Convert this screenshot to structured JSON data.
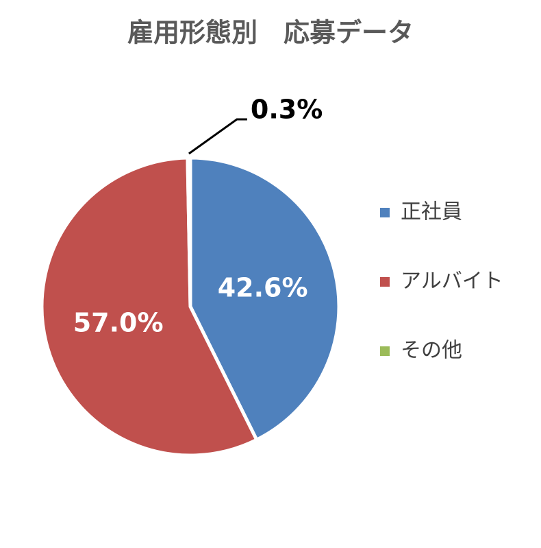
{
  "chart_data": {
    "type": "pie",
    "title": "雇用形態別　応募データ",
    "categories": [
      "正社員",
      "アルバイト",
      "その他"
    ],
    "values": [
      42.6,
      57.0,
      0.3
    ],
    "value_labels": [
      "42.6%",
      "57.0%",
      "0.3%"
    ],
    "colors": [
      "#4f81bd",
      "#c0504d",
      "#9bbb59"
    ],
    "legend": "right"
  }
}
